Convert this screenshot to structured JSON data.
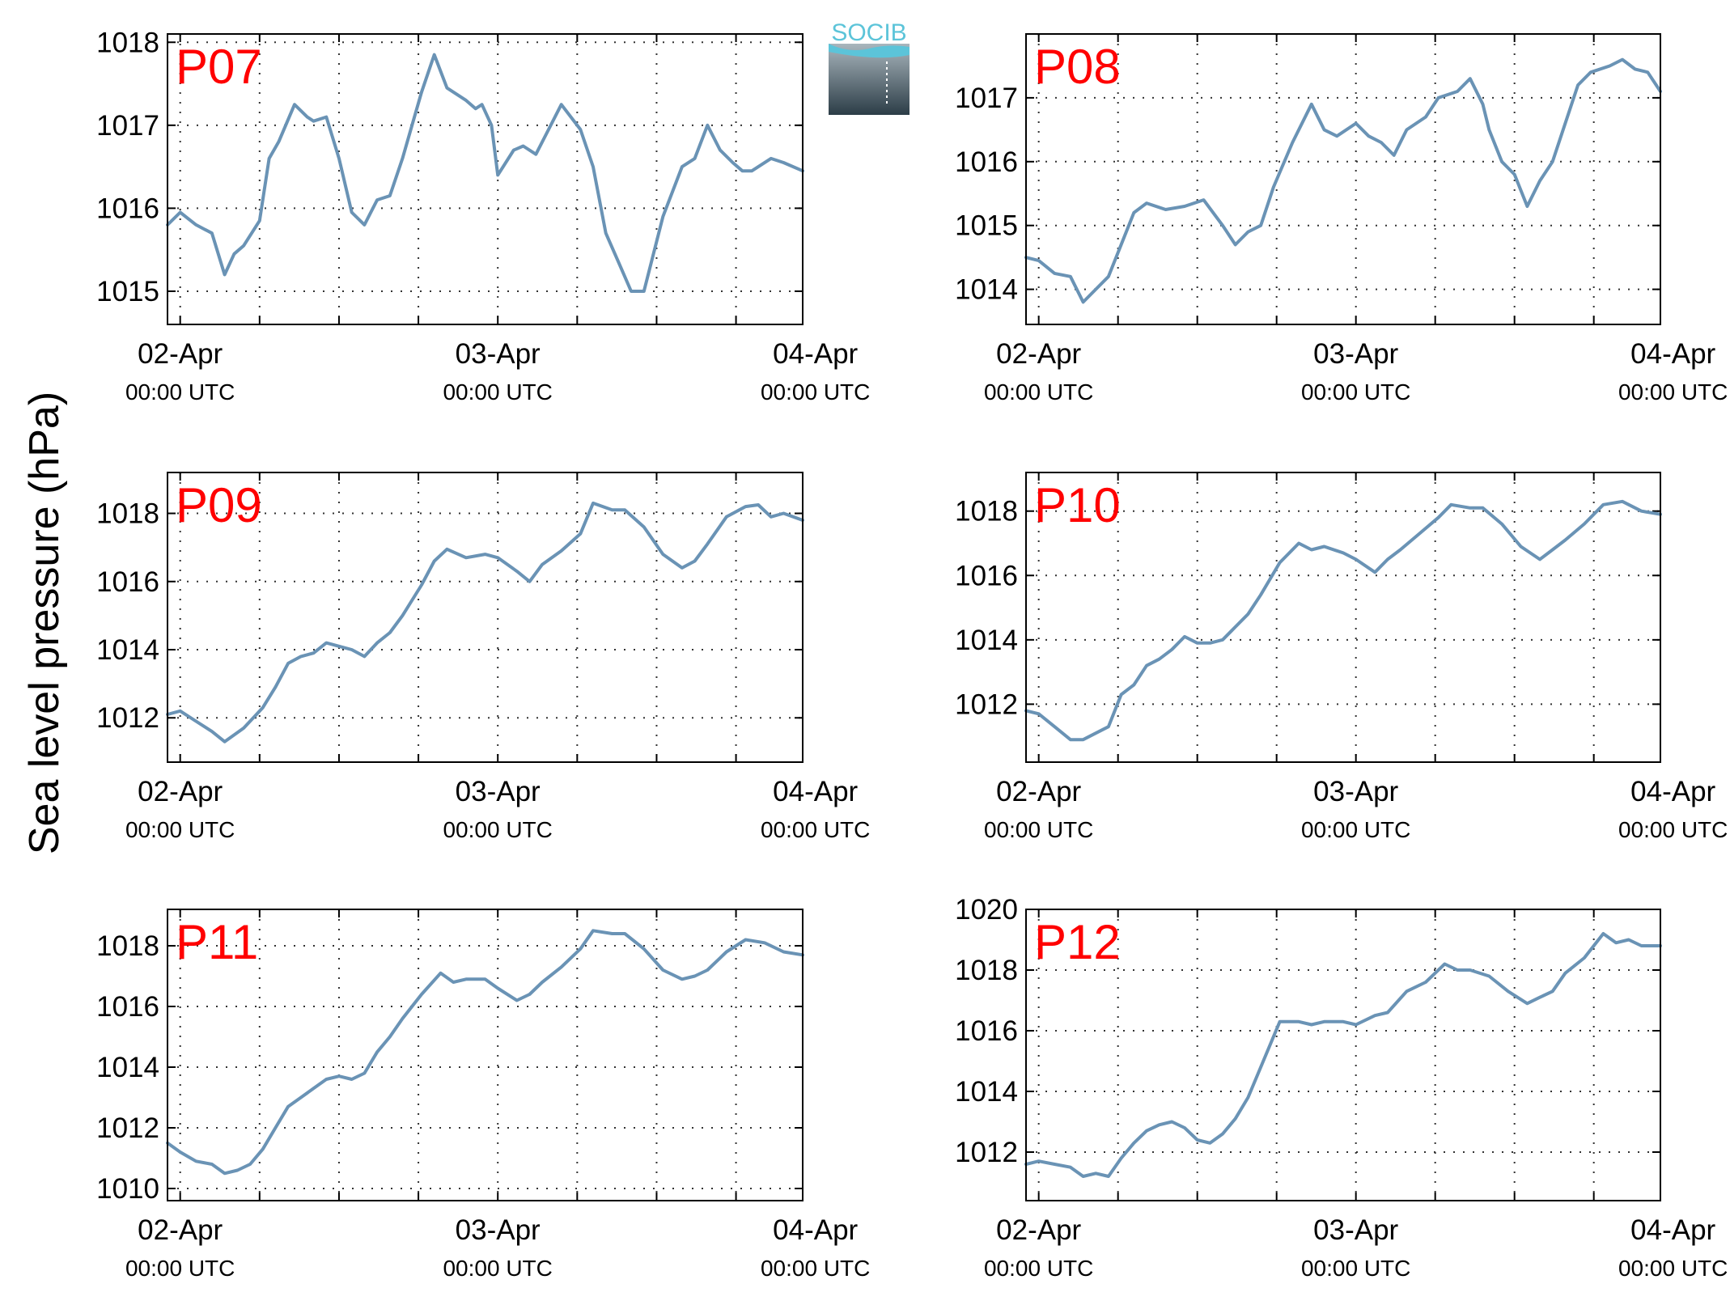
{
  "ylabel": "Sea level pressure (hPa)",
  "logo": {
    "text": "SOCIB"
  },
  "colors": {
    "series": "#6a93b5",
    "panel_label": "#ff0000"
  },
  "chart_data": [
    {
      "type": "line",
      "title": "P07",
      "x_ticks": [
        {
          "day": 0,
          "label": "02-Apr",
          "sub": "00:00 UTC"
        },
        {
          "day": 1,
          "label": "03-Apr",
          "sub": "00:00 UTC"
        },
        {
          "day": 2,
          "label": "04-Apr",
          "sub": "00:00 UTC"
        }
      ],
      "xlim": [
        -0.04,
        1.96
      ],
      "ylim": [
        1014.6,
        1018.1
      ],
      "y_ticks": [
        1015,
        1016,
        1017,
        1018
      ],
      "x": [
        -0.04,
        0.0,
        0.05,
        0.1,
        0.14,
        0.17,
        0.2,
        0.25,
        0.28,
        0.31,
        0.36,
        0.4,
        0.42,
        0.46,
        0.5,
        0.54,
        0.58,
        0.62,
        0.66,
        0.7,
        0.76,
        0.8,
        0.84,
        0.9,
        0.93,
        0.95,
        0.98,
        1.0,
        1.05,
        1.08,
        1.12,
        1.16,
        1.2,
        1.26,
        1.3,
        1.34,
        1.38,
        1.42,
        1.46,
        1.52,
        1.58,
        1.62,
        1.66,
        1.7,
        1.74,
        1.77,
        1.8,
        1.86,
        1.9,
        1.96
      ],
      "y": [
        1015.8,
        1015.95,
        1015.8,
        1015.7,
        1015.2,
        1015.45,
        1015.55,
        1015.85,
        1016.6,
        1016.8,
        1017.25,
        1017.1,
        1017.05,
        1017.1,
        1016.6,
        1015.95,
        1015.8,
        1016.1,
        1016.15,
        1016.6,
        1017.4,
        1017.85,
        1017.45,
        1017.3,
        1017.2,
        1017.25,
        1017.0,
        1016.4,
        1016.7,
        1016.75,
        1016.65,
        1016.95,
        1017.25,
        1016.95,
        1016.5,
        1015.7,
        1015.35,
        1015.0,
        1015.0,
        1015.9,
        1016.5,
        1016.6,
        1017.0,
        1016.7,
        1016.55,
        1016.45,
        1016.45,
        1016.6,
        1016.55,
        1016.45
      ]
    },
    {
      "type": "line",
      "title": "P08",
      "x_ticks": [
        {
          "day": 0,
          "label": "02-Apr",
          "sub": "00:00 UTC"
        },
        {
          "day": 1,
          "label": "03-Apr",
          "sub": "00:00 UTC"
        },
        {
          "day": 2,
          "label": "04-Apr",
          "sub": "00:00 UTC"
        }
      ],
      "xlim": [
        -0.04,
        1.96
      ],
      "ylim": [
        1013.45,
        1018.0
      ],
      "y_ticks": [
        1014,
        1015,
        1016,
        1017
      ],
      "x": [
        -0.04,
        0.0,
        0.05,
        0.1,
        0.14,
        0.18,
        0.22,
        0.26,
        0.3,
        0.34,
        0.4,
        0.46,
        0.52,
        0.58,
        0.62,
        0.66,
        0.7,
        0.74,
        0.8,
        0.86,
        0.9,
        0.94,
        1.0,
        1.04,
        1.08,
        1.12,
        1.16,
        1.22,
        1.26,
        1.32,
        1.36,
        1.4,
        1.42,
        1.46,
        1.5,
        1.54,
        1.58,
        1.62,
        1.7,
        1.74,
        1.8,
        1.84,
        1.88,
        1.92,
        1.96
      ],
      "y": [
        1014.5,
        1014.45,
        1014.25,
        1014.2,
        1013.8,
        1014.0,
        1014.2,
        1014.7,
        1015.2,
        1015.35,
        1015.25,
        1015.3,
        1015.4,
        1015.0,
        1014.7,
        1014.9,
        1015.0,
        1015.6,
        1016.3,
        1016.9,
        1016.5,
        1016.4,
        1016.6,
        1016.4,
        1016.3,
        1016.1,
        1016.5,
        1016.7,
        1017.0,
        1017.1,
        1017.3,
        1016.9,
        1016.5,
        1016.0,
        1015.8,
        1015.3,
        1015.7,
        1016.0,
        1017.2,
        1017.4,
        1017.5,
        1017.6,
        1017.45,
        1017.4,
        1017.1
      ]
    },
    {
      "type": "line",
      "title": "P09",
      "x_ticks": [
        {
          "day": 0,
          "label": "02-Apr",
          "sub": "00:00 UTC"
        },
        {
          "day": 1,
          "label": "03-Apr",
          "sub": "00:00 UTC"
        },
        {
          "day": 2,
          "label": "04-Apr",
          "sub": "00:00 UTC"
        }
      ],
      "xlim": [
        -0.04,
        1.96
      ],
      "ylim": [
        1010.7,
        1019.2
      ],
      "y_ticks": [
        1012,
        1014,
        1016,
        1018
      ],
      "x": [
        -0.04,
        0.0,
        0.05,
        0.1,
        0.14,
        0.2,
        0.26,
        0.3,
        0.34,
        0.38,
        0.42,
        0.46,
        0.5,
        0.54,
        0.58,
        0.62,
        0.66,
        0.7,
        0.76,
        0.8,
        0.84,
        0.9,
        0.96,
        1.0,
        1.06,
        1.1,
        1.14,
        1.2,
        1.26,
        1.3,
        1.36,
        1.4,
        1.46,
        1.52,
        1.58,
        1.62,
        1.66,
        1.72,
        1.78,
        1.82,
        1.86,
        1.9,
        1.96
      ],
      "y": [
        1012.1,
        1012.2,
        1011.9,
        1011.6,
        1011.3,
        1011.7,
        1012.3,
        1012.9,
        1013.6,
        1013.8,
        1013.9,
        1014.2,
        1014.1,
        1014.0,
        1013.8,
        1014.2,
        1014.5,
        1015.0,
        1015.9,
        1016.6,
        1016.95,
        1016.7,
        1016.8,
        1016.7,
        1016.3,
        1016.0,
        1016.5,
        1016.9,
        1017.4,
        1018.3,
        1018.1,
        1018.1,
        1017.6,
        1016.8,
        1016.4,
        1016.6,
        1017.1,
        1017.9,
        1018.2,
        1018.25,
        1017.9,
        1018.0,
        1017.8
      ]
    },
    {
      "type": "line",
      "title": "P10",
      "x_ticks": [
        {
          "day": 0,
          "label": "02-Apr",
          "sub": "00:00 UTC"
        },
        {
          "day": 1,
          "label": "03-Apr",
          "sub": "00:00 UTC"
        },
        {
          "day": 2,
          "label": "04-Apr",
          "sub": "00:00 UTC"
        }
      ],
      "xlim": [
        -0.04,
        1.96
      ],
      "ylim": [
        1010.2,
        1019.2
      ],
      "y_ticks": [
        1012,
        1014,
        1016,
        1018
      ],
      "x": [
        -0.04,
        0.0,
        0.05,
        0.1,
        0.14,
        0.18,
        0.22,
        0.26,
        0.3,
        0.34,
        0.38,
        0.42,
        0.46,
        0.5,
        0.54,
        0.58,
        0.62,
        0.66,
        0.7,
        0.76,
        0.82,
        0.86,
        0.9,
        0.96,
        1.0,
        1.06,
        1.1,
        1.14,
        1.2,
        1.26,
        1.3,
        1.36,
        1.4,
        1.46,
        1.52,
        1.58,
        1.62,
        1.66,
        1.72,
        1.78,
        1.84,
        1.9,
        1.96
      ],
      "y": [
        1011.8,
        1011.7,
        1011.3,
        1010.9,
        1010.9,
        1011.1,
        1011.3,
        1012.3,
        1012.6,
        1013.2,
        1013.4,
        1013.7,
        1014.1,
        1013.9,
        1013.9,
        1014.0,
        1014.4,
        1014.8,
        1015.4,
        1016.4,
        1017.0,
        1016.8,
        1016.9,
        1016.7,
        1016.5,
        1016.1,
        1016.5,
        1016.8,
        1017.3,
        1017.8,
        1018.2,
        1018.1,
        1018.1,
        1017.6,
        1016.9,
        1016.5,
        1016.8,
        1017.1,
        1017.6,
        1018.2,
        1018.3,
        1018.0,
        1017.9
      ]
    },
    {
      "type": "line",
      "title": "P11",
      "x_ticks": [
        {
          "day": 0,
          "label": "02-Apr",
          "sub": "00:00 UTC"
        },
        {
          "day": 1,
          "label": "03-Apr",
          "sub": "00:00 UTC"
        },
        {
          "day": 2,
          "label": "04-Apr",
          "sub": "00:00 UTC"
        }
      ],
      "xlim": [
        -0.04,
        1.96
      ],
      "ylim": [
        1009.6,
        1019.2
      ],
      "y_ticks": [
        1010,
        1012,
        1014,
        1016,
        1018
      ],
      "x": [
        -0.04,
        0.0,
        0.05,
        0.1,
        0.14,
        0.18,
        0.22,
        0.26,
        0.3,
        0.34,
        0.38,
        0.42,
        0.46,
        0.5,
        0.54,
        0.58,
        0.62,
        0.66,
        0.7,
        0.76,
        0.82,
        0.86,
        0.9,
        0.96,
        1.0,
        1.06,
        1.1,
        1.14,
        1.2,
        1.26,
        1.3,
        1.36,
        1.4,
        1.46,
        1.52,
        1.58,
        1.62,
        1.66,
        1.72,
        1.78,
        1.84,
        1.9,
        1.96
      ],
      "y": [
        1011.5,
        1011.2,
        1010.9,
        1010.8,
        1010.5,
        1010.6,
        1010.8,
        1011.3,
        1012.0,
        1012.7,
        1013.0,
        1013.3,
        1013.6,
        1013.7,
        1013.6,
        1013.8,
        1014.5,
        1015.0,
        1015.6,
        1016.4,
        1017.1,
        1016.8,
        1016.9,
        1016.9,
        1016.6,
        1016.2,
        1016.4,
        1016.8,
        1017.3,
        1017.9,
        1018.5,
        1018.4,
        1018.4,
        1017.9,
        1017.2,
        1016.9,
        1017.0,
        1017.2,
        1017.8,
        1018.2,
        1018.1,
        1017.8,
        1017.7
      ]
    },
    {
      "type": "line",
      "title": "P12",
      "x_ticks": [
        {
          "day": 0,
          "label": "02-Apr",
          "sub": "00:00 UTC"
        },
        {
          "day": 1,
          "label": "03-Apr",
          "sub": "00:00 UTC"
        },
        {
          "day": 2,
          "label": "04-Apr",
          "sub": "00:00 UTC"
        }
      ],
      "xlim": [
        -0.04,
        1.96
      ],
      "ylim": [
        1010.4,
        1020.0
      ],
      "y_ticks": [
        1012,
        1014,
        1016,
        1018,
        1020
      ],
      "x": [
        -0.04,
        0.0,
        0.05,
        0.1,
        0.14,
        0.18,
        0.22,
        0.26,
        0.3,
        0.34,
        0.38,
        0.42,
        0.46,
        0.5,
        0.54,
        0.58,
        0.62,
        0.66,
        0.7,
        0.76,
        0.82,
        0.86,
        0.9,
        0.96,
        1.0,
        1.06,
        1.1,
        1.16,
        1.22,
        1.28,
        1.32,
        1.36,
        1.42,
        1.48,
        1.54,
        1.58,
        1.62,
        1.66,
        1.72,
        1.78,
        1.82,
        1.86,
        1.9,
        1.96
      ],
      "y": [
        1011.6,
        1011.7,
        1011.6,
        1011.5,
        1011.2,
        1011.3,
        1011.2,
        1011.8,
        1012.3,
        1012.7,
        1012.9,
        1013.0,
        1012.8,
        1012.4,
        1012.3,
        1012.6,
        1013.1,
        1013.8,
        1014.8,
        1016.3,
        1016.3,
        1016.2,
        1016.3,
        1016.3,
        1016.2,
        1016.5,
        1016.6,
        1017.3,
        1017.6,
        1018.2,
        1018.0,
        1018.0,
        1017.8,
        1017.3,
        1016.9,
        1017.1,
        1017.3,
        1017.9,
        1018.4,
        1019.2,
        1018.9,
        1019.0,
        1018.8,
        1018.8
      ]
    }
  ]
}
